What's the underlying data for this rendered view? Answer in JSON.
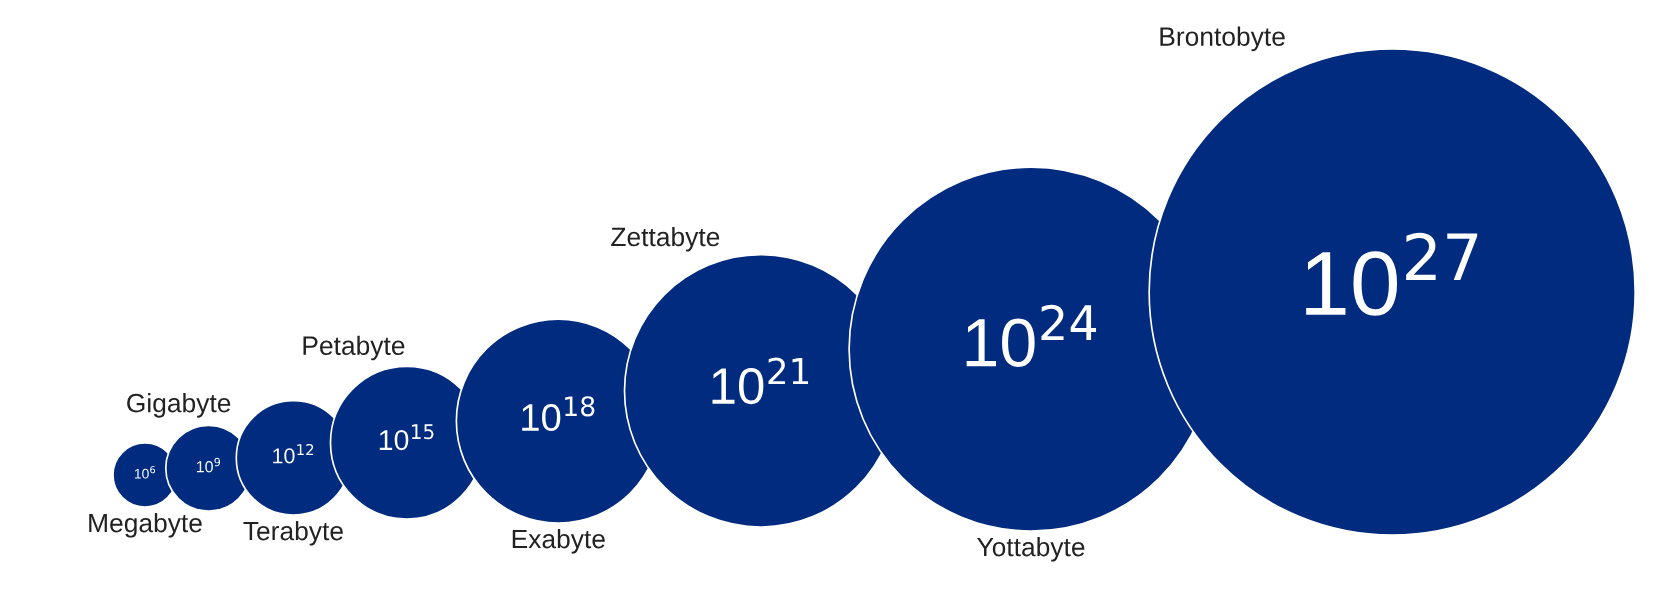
{
  "chart_data": {
    "type": "other",
    "categories": [
      "Megabyte",
      "Gigabyte",
      "Terabyte",
      "Petabyte",
      "Exabyte",
      "Zettabyte",
      "Yottabyte",
      "Brontobyte"
    ],
    "values": [
      1000000.0,
      1000000000.0,
      1000000000000.0,
      1000000000000000.0,
      1e+18,
      1e+21,
      1e+24,
      1e+27
    ],
    "value_labels": [
      "10$^{6}$",
      "10$^{9}$",
      "10$^{12}$",
      "10$^{15}$",
      "10$^{18}$",
      "10$^{21}$",
      "10$^{24}$",
      "10$^{27}$"
    ],
    "color": "#002b7f"
  }
}
